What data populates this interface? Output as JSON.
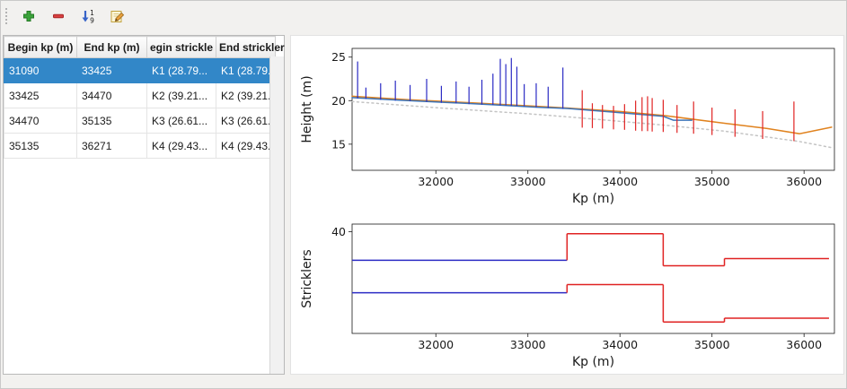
{
  "toolbar": {
    "icons": [
      "plus-icon",
      "minus-icon",
      "sort-numeric-icon",
      "edit-icon"
    ],
    "sort_digits": [
      "1",
      "9"
    ]
  },
  "colors": {
    "selection": "#3287c8",
    "zone_selected_blue": "#2b2bc4",
    "zone_other_red": "#e02222",
    "line_orange": "#e0821e",
    "line_blue": "#3c74b8",
    "line_dotted_gray": "#c4c4c4"
  },
  "table": {
    "headers": [
      "Begin kp (m)",
      "End kp (m)",
      "egin strickle",
      "End strickler"
    ],
    "rows": [
      {
        "selected": true,
        "cells": [
          "31090",
          "33425",
          "K1 (28.79...",
          "K1 (28.79..."
        ]
      },
      {
        "selected": false,
        "cells": [
          "33425",
          "34470",
          "K2 (39.21...",
          "K2 (39.21..."
        ]
      },
      {
        "selected": false,
        "cells": [
          "34470",
          "35135",
          "K3 (26.61...",
          "K3 (26.61..."
        ]
      },
      {
        "selected": false,
        "cells": [
          "35135",
          "36271",
          "K4 (29.43...",
          "K4 (29.43..."
        ]
      }
    ]
  },
  "chart_data": [
    {
      "type": "line",
      "title": "",
      "xlabel": "Kp (m)",
      "ylabel": "Height (m)",
      "xlim": [
        31090,
        36330
      ],
      "ylim": [
        12,
        26
      ],
      "xticks": [
        32000,
        33000,
        34000,
        35000,
        36000
      ],
      "yticks": [
        15,
        20,
        25
      ],
      "grid": false,
      "margins": {
        "l": 60,
        "r": 10,
        "t": 10,
        "b": 44
      },
      "series": [
        {
          "name": "bed-line-dotted",
          "color": "#c4c4c4",
          "dash": "2,3.5",
          "width": 1.5,
          "points": [
            [
              31090,
              19.9
            ],
            [
              32000,
              19.2
            ],
            [
              33000,
              18.5
            ],
            [
              33425,
              18.15
            ],
            [
              34470,
              17.2
            ],
            [
              35135,
              16.5
            ],
            [
              35950,
              15.3
            ],
            [
              36300,
              14.6
            ]
          ]
        },
        {
          "name": "height-line-orange",
          "color": "#e0821e",
          "width": 1.5,
          "points": [
            [
              31090,
              20.5
            ],
            [
              31700,
              20.1
            ],
            [
              32400,
              19.75
            ],
            [
              33100,
              19.35
            ],
            [
              33425,
              19.15
            ],
            [
              34000,
              18.75
            ],
            [
              34470,
              18.3
            ],
            [
              35135,
              17.4
            ],
            [
              35600,
              16.8
            ],
            [
              35950,
              16.2
            ],
            [
              36300,
              16.95
            ]
          ]
        },
        {
          "name": "height-line-blue",
          "color": "#3c74b8",
          "width": 1.5,
          "points": [
            [
              31090,
              20.35
            ],
            [
              31600,
              20.05
            ],
            [
              32100,
              19.8
            ],
            [
              32600,
              19.55
            ],
            [
              33100,
              19.25
            ],
            [
              33425,
              19.1
            ],
            [
              33900,
              18.7
            ],
            [
              34470,
              18.2
            ],
            [
              34580,
              17.75
            ],
            [
              34780,
              17.75
            ]
          ]
        }
      ],
      "spikes": [
        {
          "name": "profiles-selected-zone",
          "color": "#2b2bc4",
          "lines": [
            [
              31150,
              20.25,
              24.5
            ],
            [
              31240,
              20.2,
              21.5
            ],
            [
              31400,
              20.1,
              22.0
            ],
            [
              31560,
              20.0,
              22.3
            ],
            [
              31720,
              19.95,
              21.8
            ],
            [
              31900,
              19.85,
              22.5
            ],
            [
              32060,
              19.75,
              21.7
            ],
            [
              32220,
              19.7,
              22.2
            ],
            [
              32360,
              19.6,
              21.6
            ],
            [
              32500,
              19.55,
              22.4
            ],
            [
              32620,
              19.5,
              23.1
            ],
            [
              32700,
              19.45,
              24.8
            ],
            [
              32760,
              19.45,
              24.2
            ],
            [
              32820,
              19.4,
              24.9
            ],
            [
              32880,
              19.4,
              23.9
            ],
            [
              32960,
              19.35,
              21.9
            ],
            [
              33090,
              19.25,
              22.0
            ],
            [
              33220,
              19.15,
              21.6
            ],
            [
              33380,
              19.05,
              23.8
            ]
          ]
        },
        {
          "name": "profiles-other-zones",
          "color": "#e02222",
          "lines": [
            [
              33590,
              16.9,
              21.2
            ],
            [
              33700,
              16.85,
              19.7
            ],
            [
              33810,
              16.8,
              19.5
            ],
            [
              33930,
              16.7,
              19.4
            ],
            [
              34050,
              16.65,
              19.6
            ],
            [
              34170,
              16.55,
              20.0
            ],
            [
              34240,
              16.5,
              20.4
            ],
            [
              34300,
              16.5,
              20.5
            ],
            [
              34350,
              16.45,
              20.3
            ],
            [
              34470,
              16.4,
              20.1
            ],
            [
              34620,
              16.3,
              19.5
            ],
            [
              34800,
              16.2,
              19.9
            ],
            [
              35000,
              16.05,
              19.2
            ],
            [
              35250,
              15.85,
              19.0
            ],
            [
              35550,
              15.6,
              18.8
            ],
            [
              35890,
              15.35,
              19.9
            ]
          ]
        }
      ]
    },
    {
      "type": "step",
      "title": "",
      "xlabel": "Kp (m)",
      "ylabel": "Stricklers",
      "xlim": [
        31090,
        36330
      ],
      "ylim": [
        0,
        43
      ],
      "xticks": [
        32000,
        33000,
        34000,
        35000,
        36000
      ],
      "yticks": [
        40
      ],
      "grid": false,
      "margins": {
        "l": 60,
        "r": 10,
        "t": 8,
        "b": 44
      },
      "zones": [
        {
          "begin": 31090,
          "end": 33425,
          "k_upper": 28.79,
          "k_lower": 16.0,
          "color": "#2b2bc4"
        },
        {
          "begin": 33425,
          "end": 34470,
          "k_upper": 39.21,
          "k_lower": 19.2,
          "color": "#e02222"
        },
        {
          "begin": 34470,
          "end": 35135,
          "k_upper": 26.61,
          "k_lower": 4.5,
          "color": "#e02222"
        },
        {
          "begin": 35135,
          "end": 36271,
          "k_upper": 29.43,
          "k_lower": 6.0,
          "color": "#e02222"
        }
      ]
    }
  ]
}
